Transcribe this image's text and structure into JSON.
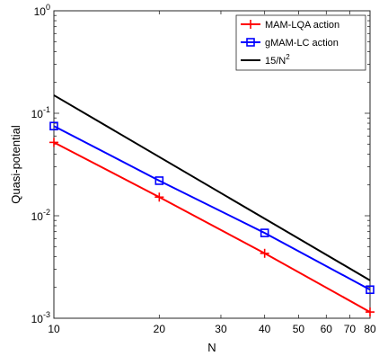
{
  "chart_data": {
    "type": "line",
    "xlabel": "N",
    "ylabel": "Quasi-potential",
    "xscale": "log",
    "yscale": "log",
    "xlim": [
      10,
      80
    ],
    "ylim": [
      0.001,
      1
    ],
    "xticks": [
      10,
      20,
      30,
      40,
      50,
      60,
      70,
      80
    ],
    "xtick_labels": [
      "10",
      "20",
      "30",
      "40",
      "50",
      "60",
      "70",
      "80"
    ],
    "yticks": [
      0.001,
      0.01,
      0.1,
      1
    ],
    "ytick_labels": [
      {
        "base": "10",
        "exp": "-3"
      },
      {
        "base": "10",
        "exp": "-2"
      },
      {
        "base": "10",
        "exp": "-1"
      },
      {
        "base": "10",
        "exp": "0"
      }
    ],
    "legend_position": "top-right",
    "series": [
      {
        "name": "MAM-LQA action",
        "color": "#ff0000",
        "marker": "plus",
        "x": [
          10,
          20,
          40,
          80
        ],
        "y": [
          0.052,
          0.0152,
          0.0043,
          0.00115
        ]
      },
      {
        "name": "gMAM-LC action",
        "color": "#0000ff",
        "marker": "square",
        "x": [
          10,
          20,
          40,
          80
        ],
        "y": [
          0.075,
          0.022,
          0.0068,
          0.0019
        ]
      },
      {
        "name": "15/N",
        "name_sup": "2",
        "color": "#000000",
        "marker": "none",
        "x": [
          10,
          80
        ],
        "y": [
          0.15,
          0.00234375
        ]
      }
    ]
  }
}
